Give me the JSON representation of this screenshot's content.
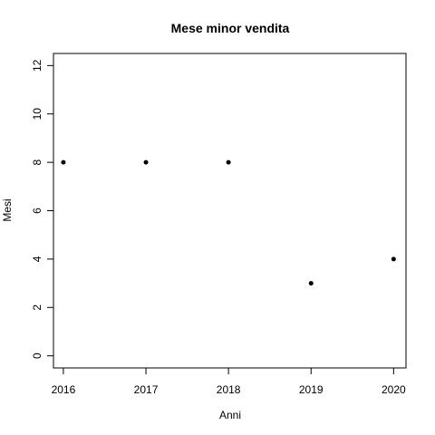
{
  "chart_data": {
    "type": "scatter",
    "title": "Mese minor vendita",
    "xlabel": "Anni",
    "ylabel": "Mesi",
    "x": [
      2016,
      2017,
      2018,
      2019,
      2020
    ],
    "y": [
      8,
      8,
      8,
      3,
      4
    ],
    "xticks": [
      "2016",
      "2017",
      "2018",
      "2019",
      "2020"
    ],
    "yticks": [
      "0",
      "2",
      "4",
      "6",
      "8",
      "10",
      "12"
    ],
    "xlim": [
      2015.88,
      2020.15
    ],
    "ylim": [
      -0.5,
      12.5
    ],
    "grid": false,
    "point_color": "#000000"
  }
}
